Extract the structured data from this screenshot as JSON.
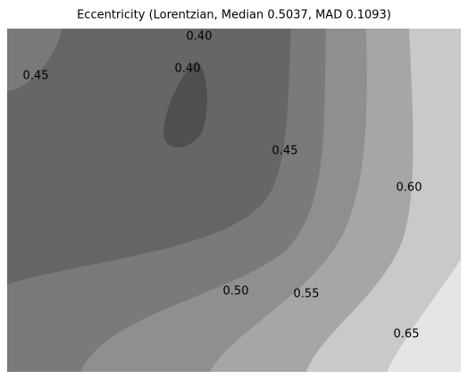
{
  "chart_data": {
    "type": "contour",
    "title": "Eccentricity (Lorentzian, Median 0.5037, MAD 0.1093)",
    "levels": [
      0.4,
      0.45,
      0.5,
      0.55,
      0.6,
      0.65
    ],
    "colors": [
      "#4f4f4f",
      "#666666",
      "#7a7a7a",
      "#8f8f8f",
      "#a6a6a6",
      "#c9c9c9",
      "#e5e5e5"
    ],
    "labels": {
      "values": [
        0.4,
        0.4,
        0.45,
        0.45,
        0.5,
        0.55,
        0.6,
        0.65
      ],
      "value_labels": [
        "0.40",
        "0.40",
        "0.45",
        "0.45",
        "0.50",
        "0.55",
        "0.60",
        "0.65"
      ]
    }
  }
}
